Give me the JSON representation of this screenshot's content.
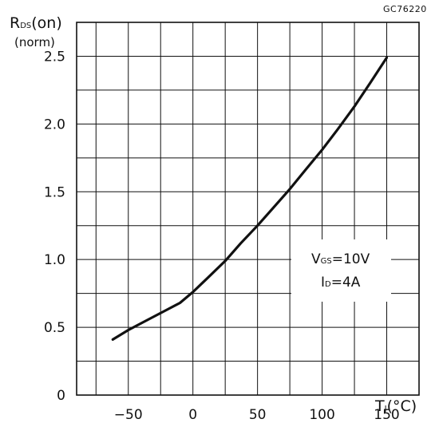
{
  "figure_code": "GC76220",
  "y_axis": {
    "symbol": "R",
    "subscript": "DS",
    "suffix": "(on)",
    "unit": "(norm)"
  },
  "x_axis": {
    "symbol": "T",
    "subscript": "J",
    "suffix": "(°C)"
  },
  "conditions": {
    "vgs": {
      "symbol": "V",
      "subscript": "GS",
      "value": "=10V"
    },
    "id": {
      "symbol": "I",
      "subscript": "D",
      "value": "=4A"
    }
  },
  "chart_data": {
    "type": "line",
    "xlim": [
      -90,
      175
    ],
    "ylim": [
      0,
      2.75
    ],
    "x_ticks": [
      -50,
      0,
      50,
      100,
      150
    ],
    "x_tick_labels": [
      "−50",
      "0",
      "50",
      "100",
      "150"
    ],
    "y_ticks": [
      0,
      0.5,
      1.0,
      1.5,
      2.0,
      2.5
    ],
    "y_tick_labels": [
      "0",
      "0.5",
      "1.0",
      "1.5",
      "2.0",
      "2.5"
    ],
    "x_grid": [
      -75,
      -50,
      -25,
      0,
      25,
      50,
      75,
      100,
      125,
      150
    ],
    "y_grid": [
      0.25,
      0.5,
      0.75,
      1.0,
      1.25,
      1.5,
      1.75,
      2.0,
      2.25,
      2.5
    ],
    "grid": true,
    "series": [
      {
        "x": [
          -62,
          -50,
          -40,
          -30,
          -20,
          -10,
          0,
          12,
          25,
          37,
          50,
          62,
          75,
          87,
          100,
          112,
          125,
          137,
          150
        ],
        "y": [
          0.41,
          0.48,
          0.53,
          0.58,
          0.63,
          0.68,
          0.76,
          0.87,
          0.99,
          1.12,
          1.25,
          1.38,
          1.52,
          1.66,
          1.81,
          1.96,
          2.13,
          2.3,
          2.49
        ]
      }
    ]
  }
}
